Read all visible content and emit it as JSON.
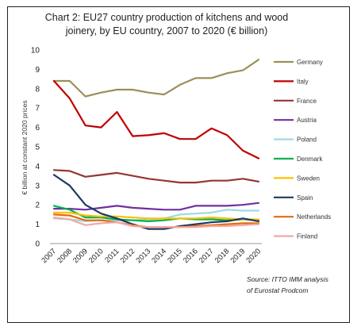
{
  "chart_data": {
    "type": "line",
    "title_line1": "Chart 2: EU27 country production of kitchens and wood",
    "title_line2": "joinery, by EU country, 2007 to 2020 (€ billion)",
    "ylabel": "€ billion at constant 2020 prices",
    "xlabel": "",
    "ylim": [
      0,
      10
    ],
    "yticks": [
      "0",
      "1",
      "2",
      "3",
      "4",
      "5",
      "6",
      "7",
      "8",
      "9",
      "10"
    ],
    "categories": [
      "2007",
      "2008",
      "2009",
      "2010",
      "2011",
      "2012",
      "2013",
      "2014",
      "2015",
      "2016",
      "2017",
      "2018",
      "2019",
      "2020"
    ],
    "grid": false,
    "legend_position": "right",
    "source_line1": "Source: ITTO IMM analysis",
    "source_line2": "of Eurostat Prodcom",
    "series": [
      {
        "name": "Germany",
        "color": "#9b8f5a",
        "values": [
          8.4,
          8.4,
          7.6,
          7.8,
          7.95,
          7.95,
          7.8,
          7.7,
          8.2,
          8.55,
          8.55,
          8.8,
          8.95,
          9.5
        ]
      },
      {
        "name": "Italy",
        "color": "#c00000",
        "values": [
          8.4,
          7.5,
          6.1,
          6.0,
          6.8,
          5.55,
          5.6,
          5.7,
          5.4,
          5.4,
          5.95,
          5.6,
          4.8,
          4.4
        ]
      },
      {
        "name": "France",
        "color": "#943634",
        "values": [
          3.8,
          3.75,
          3.45,
          3.55,
          3.65,
          3.5,
          3.35,
          3.25,
          3.15,
          3.15,
          3.25,
          3.25,
          3.35,
          3.2
        ]
      },
      {
        "name": "Austria",
        "color": "#7030a0",
        "values": [
          1.8,
          1.8,
          1.75,
          1.85,
          1.95,
          1.85,
          1.8,
          1.75,
          1.75,
          1.95,
          1.95,
          1.95,
          2.0,
          2.1
        ]
      },
      {
        "name": "Poland",
        "color": "#9fd9e6",
        "values": [
          1.3,
          1.25,
          1.15,
          1.2,
          1.2,
          1.2,
          1.25,
          1.3,
          1.5,
          1.55,
          1.6,
          1.75,
          1.7,
          1.7
        ]
      },
      {
        "name": "Denmark",
        "color": "#00b050",
        "values": [
          1.95,
          1.75,
          1.35,
          1.35,
          1.25,
          1.2,
          1.15,
          1.2,
          1.3,
          1.25,
          1.25,
          1.2,
          1.25,
          1.2
        ]
      },
      {
        "name": "Sweden",
        "color": "#ffc000",
        "values": [
          1.6,
          1.6,
          1.45,
          1.4,
          1.4,
          1.35,
          1.3,
          1.3,
          1.3,
          1.3,
          1.35,
          1.3,
          1.25,
          1.25
        ]
      },
      {
        "name": "Spain",
        "color": "#1f3864",
        "values": [
          3.55,
          3.0,
          2.0,
          1.55,
          1.3,
          1.0,
          0.75,
          0.75,
          0.9,
          1.0,
          1.1,
          1.15,
          1.3,
          1.15
        ]
      },
      {
        "name": "Netherlands",
        "color": "#e36c09",
        "values": [
          1.5,
          1.45,
          1.2,
          1.2,
          1.1,
          0.95,
          0.85,
          0.85,
          0.85,
          0.9,
          0.95,
          1.0,
          1.05,
          1.05
        ]
      },
      {
        "name": "Finland",
        "color": "#f4a6a6",
        "values": [
          1.35,
          1.25,
          0.95,
          1.05,
          1.1,
          0.9,
          0.85,
          0.85,
          0.85,
          0.85,
          0.9,
          0.9,
          0.95,
          1.0
        ]
      }
    ]
  }
}
